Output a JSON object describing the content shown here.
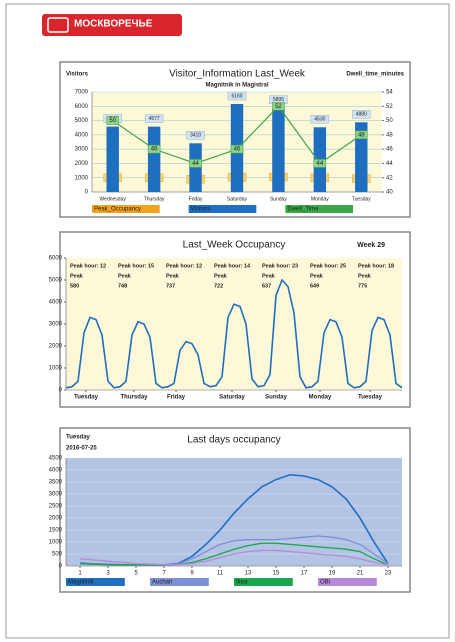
{
  "header": {
    "logo": "МОСКВОРЕЧЬЕ"
  },
  "chart_data": [
    {
      "type": "bar",
      "title": "Visitor_Information Last_Week",
      "subtitle": "Magnitnik in Magistral",
      "y_label": "Visitors",
      "y2_label": "Dwell_time_minutes",
      "categories": [
        "Wednesday",
        "Thursday",
        "Friday",
        "Saturday",
        "Sunday",
        "Monday",
        "Tuesday"
      ],
      "series": [
        {
          "name": "Peak_Occupancy",
          "color": "#f5a31a",
          "values": [
            577,
            577,
            470,
            612,
            629,
            577,
            521
          ]
        },
        {
          "name": "Visitors",
          "color": "#1f6fc1",
          "values": [
            4580,
            4577,
            3410,
            6160,
            5895,
            4530,
            4880
          ]
        },
        {
          "name": "Dwell_Time",
          "color": "#3aa847",
          "axis": "y2",
          "values": [
            50,
            46,
            44,
            46,
            52,
            44,
            48
          ]
        }
      ],
      "ylim": [
        0,
        7000
      ],
      "yticks": [
        0,
        1000,
        2000,
        3000,
        4000,
        5000,
        6000,
        7000
      ],
      "y2lim": [
        40,
        54
      ],
      "y2ticks": [
        40,
        42,
        44,
        46,
        48,
        50,
        52,
        54
      ],
      "grid": true
    },
    {
      "type": "line",
      "title": "Last_Week Occupancy",
      "subtitle": "Week 29",
      "x": [
        0,
        3,
        6,
        9,
        12,
        15,
        18,
        21,
        24,
        27,
        30,
        33,
        36,
        39,
        42,
        45,
        48,
        51,
        54,
        57,
        60,
        63,
        66,
        69,
        72,
        75,
        78,
        81,
        84,
        87,
        90,
        93,
        96,
        99,
        102,
        105,
        108,
        111,
        114,
        117,
        120,
        123,
        126,
        129,
        132,
        135,
        138,
        141,
        144,
        147,
        150,
        153,
        156,
        159,
        162,
        165,
        168
      ],
      "series": [
        {
          "name": "Occupancy",
          "color": "#1f6fc1",
          "values": [
            100,
            150,
            400,
            2600,
            3300,
            3200,
            2500,
            400,
            100,
            150,
            400,
            2500,
            3100,
            3000,
            2400,
            300,
            100,
            150,
            300,
            1800,
            2200,
            2100,
            1600,
            300,
            150,
            200,
            600,
            3300,
            3900,
            3800,
            3000,
            500,
            150,
            200,
            700,
            4300,
            5000,
            4700,
            3500,
            600,
            100,
            150,
            400,
            2600,
            3200,
            3100,
            2400,
            300,
            100,
            150,
            400,
            2700,
            3300,
            3200,
            2500,
            300,
            100
          ]
        }
      ],
      "xlim": [
        0,
        168
      ],
      "xticks": [
        {
          "value": 10,
          "label": "Tuesday"
        },
        {
          "value": 34,
          "label": "Thursday"
        },
        {
          "value": 55,
          "label": "Friday"
        },
        {
          "value": 83,
          "label": "Saturday"
        },
        {
          "value": 105,
          "label": "Sunday"
        },
        {
          "value": 127,
          "label": "Monday"
        },
        {
          "value": 152,
          "label": "Tuesday"
        }
      ],
      "ylim": [
        0,
        6000
      ],
      "yticks": [
        0,
        1000,
        2000,
        3000,
        4000,
        5000,
        6000
      ],
      "annotations": [
        {
          "label": "Peak hour: 12",
          "peak_label": "Peak",
          "peak": 580
        },
        {
          "label": "Peak hour: 15",
          "peak_label": "Peak",
          "peak": 748
        },
        {
          "label": "Peak hour: 12",
          "peak_label": "Peak",
          "peak": 737
        },
        {
          "label": "Peak hour: 14",
          "peak_label": "Peak",
          "peak": 722
        },
        {
          "label": "Peak hour: 23",
          "peak_label": "Peak",
          "peak": 637
        },
        {
          "label": "Peak hour: 25",
          "peak_label": "Peak",
          "peak": 649
        },
        {
          "label": "Peak hour: 18",
          "peak_label": "Peak",
          "peak": 775
        }
      ]
    },
    {
      "type": "line",
      "title": "Last days occupancy",
      "subtitle": "Tuesday",
      "date": "2016-07-25",
      "x": [
        1,
        2,
        3,
        4,
        5,
        6,
        7,
        8,
        9,
        10,
        11,
        12,
        13,
        14,
        15,
        16,
        17,
        18,
        19,
        20,
        21,
        22,
        23
      ],
      "series": [
        {
          "name": "Magnitnik",
          "color": "#1f6fc1",
          "values": [
            100,
            80,
            60,
            50,
            50,
            50,
            50,
            100,
            400,
            900,
            1500,
            2200,
            2800,
            3300,
            3600,
            3800,
            3750,
            3600,
            3300,
            2800,
            2000,
            1000,
            100
          ]
        },
        {
          "name": "Auchan",
          "color": "#7d8fd6",
          "values": [
            150,
            100,
            80,
            60,
            50,
            50,
            50,
            80,
            300,
            600,
            900,
            1050,
            1100,
            1100,
            1100,
            1150,
            1200,
            1250,
            1200,
            1100,
            900,
            500,
            100
          ]
        },
        {
          "name": "Ikea",
          "color": "#1aa64a",
          "values": [
            100,
            80,
            60,
            50,
            50,
            50,
            50,
            60,
            150,
            300,
            500,
            700,
            850,
            950,
            950,
            900,
            850,
            800,
            750,
            700,
            600,
            300,
            50
          ]
        },
        {
          "name": "OBI",
          "color": "#b58ad8",
          "values": [
            300,
            250,
            200,
            150,
            100,
            80,
            60,
            60,
            100,
            200,
            350,
            500,
            600,
            650,
            650,
            600,
            550,
            500,
            450,
            400,
            300,
            150,
            50
          ]
        }
      ],
      "xlim": [
        0,
        24
      ],
      "xticks": [
        1,
        3,
        5,
        7,
        9,
        11,
        13,
        15,
        17,
        19,
        21,
        23
      ],
      "ylim": [
        0,
        4500
      ],
      "yticks": [
        0,
        500,
        1000,
        1500,
        2000,
        2500,
        3000,
        3500,
        4000,
        4500
      ],
      "grid": true
    }
  ]
}
